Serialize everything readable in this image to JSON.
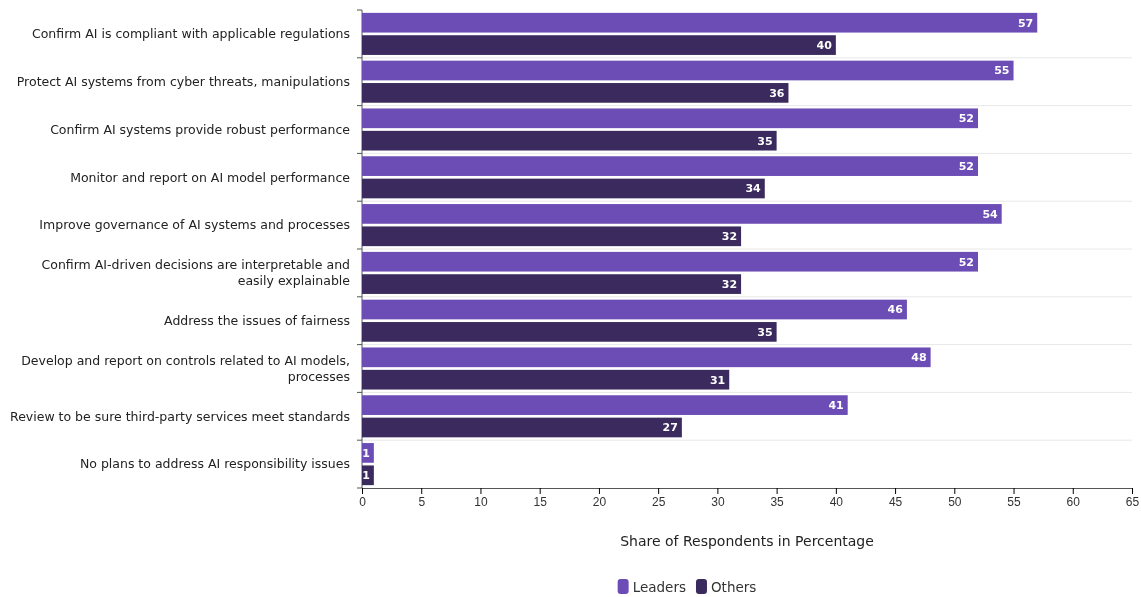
{
  "chart_data": {
    "type": "bar",
    "orientation": "horizontal",
    "xlabel": "Share of Respondents in Percentage",
    "categories": [
      "Confirm AI is compliant with applicable regulations",
      "Protect AI systems from cyber threats, manipulations",
      "Confirm AI systems provide robust performance",
      "Monitor and report on AI model performance",
      "Improve governance of AI systems and processes",
      "Confirm AI-driven decisions are interpretable and easily explainable",
      "Address the issues of fairness",
      "Develop and report on controls related to AI models, processes",
      "Review to be sure third-party services meet standards",
      "No plans to address AI responsibility issues"
    ],
    "series": [
      {
        "name": "Leaders",
        "color": "#6b4db5",
        "values": [
          57,
          55,
          52,
          52,
          54,
          52,
          46,
          48,
          41,
          1
        ]
      },
      {
        "name": "Others",
        "color": "#3a2a5e",
        "values": [
          40,
          36,
          35,
          34,
          32,
          32,
          35,
          31,
          27,
          1
        ]
      }
    ],
    "xlim": [
      0,
      65
    ],
    "xticks": [
      0,
      5,
      10,
      15,
      20,
      25,
      30,
      35,
      40,
      45,
      50,
      55,
      60,
      65
    ],
    "data_labels": true,
    "grid": "y",
    "legend": "bottom"
  }
}
